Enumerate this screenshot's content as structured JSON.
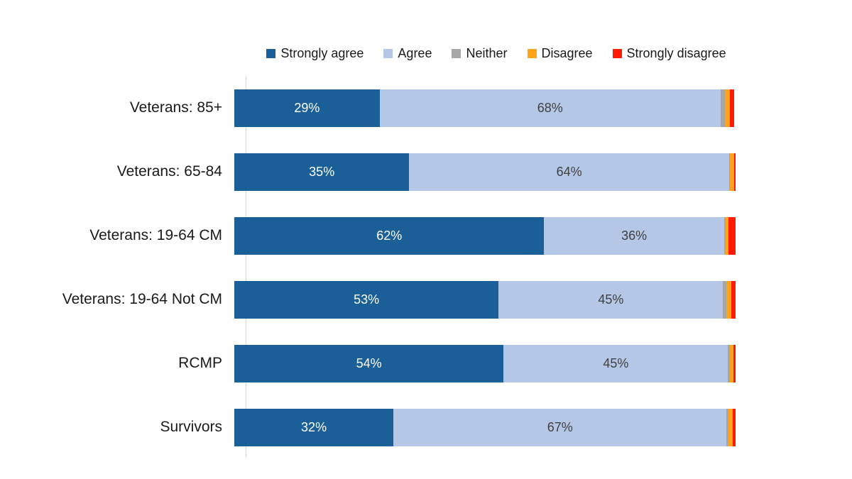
{
  "chart_data": {
    "type": "bar",
    "orientation": "horizontal",
    "stacked": true,
    "title": "",
    "xlabel": "",
    "ylabel": "",
    "xlim": [
      0,
      100
    ],
    "grid": false,
    "legend_position": "top",
    "value_suffix": "%",
    "categories": [
      "Veterans: 85+",
      "Veterans: 65-84",
      "Veterans: 19-64 CM",
      "Veterans: 19-64 Not CM",
      "RCMP",
      "Survivors"
    ],
    "series": [
      {
        "name": "Strongly agree",
        "color": "#1a5f97",
        "label_color": "#ffffff",
        "values": [
          29,
          35,
          62,
          53,
          54,
          32
        ],
        "labels": [
          "29%",
          "35%",
          "62%",
          "53%",
          "54%",
          "32%"
        ]
      },
      {
        "name": "Agree",
        "color": "#b4c7e7",
        "label_color": "#404040",
        "values": [
          68,
          64,
          36,
          45,
          45,
          67
        ],
        "labels": [
          "68%",
          "64%",
          "36%",
          "45%",
          "45%",
          "67%"
        ]
      },
      {
        "name": "Neither",
        "color": "#a6a6a6",
        "label_color": "#404040",
        "values": [
          0.9,
          0.2,
          0.3,
          0.6,
          0.4,
          0.3
        ],
        "labels": [
          "",
          "",
          "",
          "",
          "",
          ""
        ]
      },
      {
        "name": "Disagree",
        "color": "#ffa419",
        "label_color": "#404040",
        "values": [
          0.9,
          0.8,
          0.6,
          1.0,
          0.6,
          0.9
        ],
        "labels": [
          "",
          "",
          "",
          "",
          "",
          ""
        ]
      },
      {
        "name": "Strongly disagree",
        "color": "#fe1b00",
        "label_color": "#ffffff",
        "values": [
          0.9,
          0.3,
          1.4,
          0.9,
          0.5,
          0.6
        ],
        "labels": [
          "",
          "",
          "",
          "",
          "",
          ""
        ]
      }
    ]
  },
  "colors": {
    "axis_line": "#d9d9d9",
    "category_label": "#1a1a1a",
    "legend_label": "#1a1a1a",
    "background": "#ffffff"
  }
}
